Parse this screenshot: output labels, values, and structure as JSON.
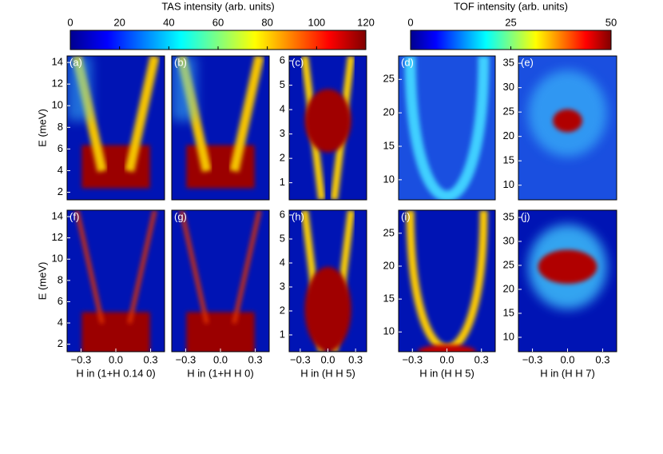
{
  "colorbars": [
    {
      "title": "TAS intensity (arb. units)",
      "lim": [
        0,
        120
      ],
      "ticks": [
        0,
        20,
        40,
        60,
        80,
        100,
        120
      ]
    },
    {
      "title": "TOF intensity (arb. units)",
      "lim": [
        0,
        50
      ],
      "ticks": [
        0,
        25,
        50
      ]
    }
  ],
  "chart_data": [
    {
      "type": "heatmap",
      "label": "(a)",
      "ylabel": "E (meV)",
      "xlim": [
        -0.42,
        0.42
      ],
      "xticks": [],
      "ylim": [
        1.3,
        14.6
      ],
      "yticks": [
        2,
        4,
        6,
        8,
        10,
        12,
        14
      ]
    },
    {
      "type": "heatmap",
      "label": "(b)",
      "xlim": [
        -0.42,
        0.42
      ],
      "xticks": [],
      "ylim": [
        1.3,
        14.6
      ],
      "yticks": []
    },
    {
      "type": "heatmap",
      "label": "(c)",
      "xlim": [
        -0.42,
        0.42
      ],
      "xticks": [],
      "ylim": [
        0.3,
        6.2
      ],
      "yticks": [
        1,
        2,
        3,
        4,
        5,
        6
      ]
    },
    {
      "type": "heatmap",
      "label": "(d)",
      "xlim": [
        -0.42,
        0.42
      ],
      "xticks": [],
      "ylim": [
        7,
        28.5
      ],
      "yticks": [
        10,
        15,
        20,
        25
      ]
    },
    {
      "type": "heatmap",
      "label": "(e)",
      "xlim": [
        -0.42,
        0.42
      ],
      "xticks": [],
      "ylim": [
        7,
        36.5
      ],
      "yticks": [
        10,
        15,
        20,
        25,
        30,
        35
      ]
    },
    {
      "type": "heatmap",
      "label": "(f)",
      "ylabel": "E (meV)",
      "xlabel": "H in (1+H 0.14 0)",
      "xlim": [
        -0.42,
        0.42
      ],
      "xticks": [
        {
          "value": -0.3,
          "label": "−0.3"
        },
        {
          "value": 0,
          "label": "0.0"
        },
        0.3
      ],
      "ylim": [
        1.3,
        14.6
      ],
      "yticks": [
        2,
        4,
        6,
        8,
        10,
        12,
        14
      ]
    },
    {
      "type": "heatmap",
      "label": "(g)",
      "xlabel": "H in (1+H H 0)",
      "xlim": [
        -0.42,
        0.42
      ],
      "xticks": [
        {
          "value": -0.3,
          "label": "−0.3"
        },
        {
          "value": 0,
          "label": "0.0"
        },
        0.3
      ],
      "ylim": [
        1.3,
        14.6
      ],
      "yticks": []
    },
    {
      "type": "heatmap",
      "label": "(h)",
      "xlabel": "H in (H H 5)",
      "xlim": [
        -0.42,
        0.42
      ],
      "xticks": [
        {
          "value": -0.3,
          "label": "−0.3"
        },
        {
          "value": 0,
          "label": "0.0"
        },
        0.3
      ],
      "ylim": [
        0.3,
        6.2
      ],
      "yticks": [
        1,
        2,
        3,
        4,
        5,
        6
      ]
    },
    {
      "type": "heatmap",
      "label": "(i)",
      "xlabel": "H  in (H H 5)",
      "xlim": [
        -0.42,
        0.42
      ],
      "xticks": [
        {
          "value": -0.3,
          "label": "−0.3"
        },
        {
          "value": 0,
          "label": "0.0"
        },
        0.3
      ],
      "ylim": [
        7,
        28.5
      ],
      "yticks": [
        10,
        15,
        20,
        25
      ]
    },
    {
      "type": "heatmap",
      "label": "(j)",
      "xlabel": "H  in (H H 7)",
      "xlim": [
        -0.42,
        0.42
      ],
      "xticks": [
        {
          "value": -0.3,
          "label": "−0.3"
        },
        {
          "value": 0,
          "label": "0.0"
        },
        0.3
      ],
      "ylim": [
        7,
        36.5
      ],
      "yticks": [
        10,
        15,
        20,
        25,
        30,
        35
      ]
    }
  ]
}
